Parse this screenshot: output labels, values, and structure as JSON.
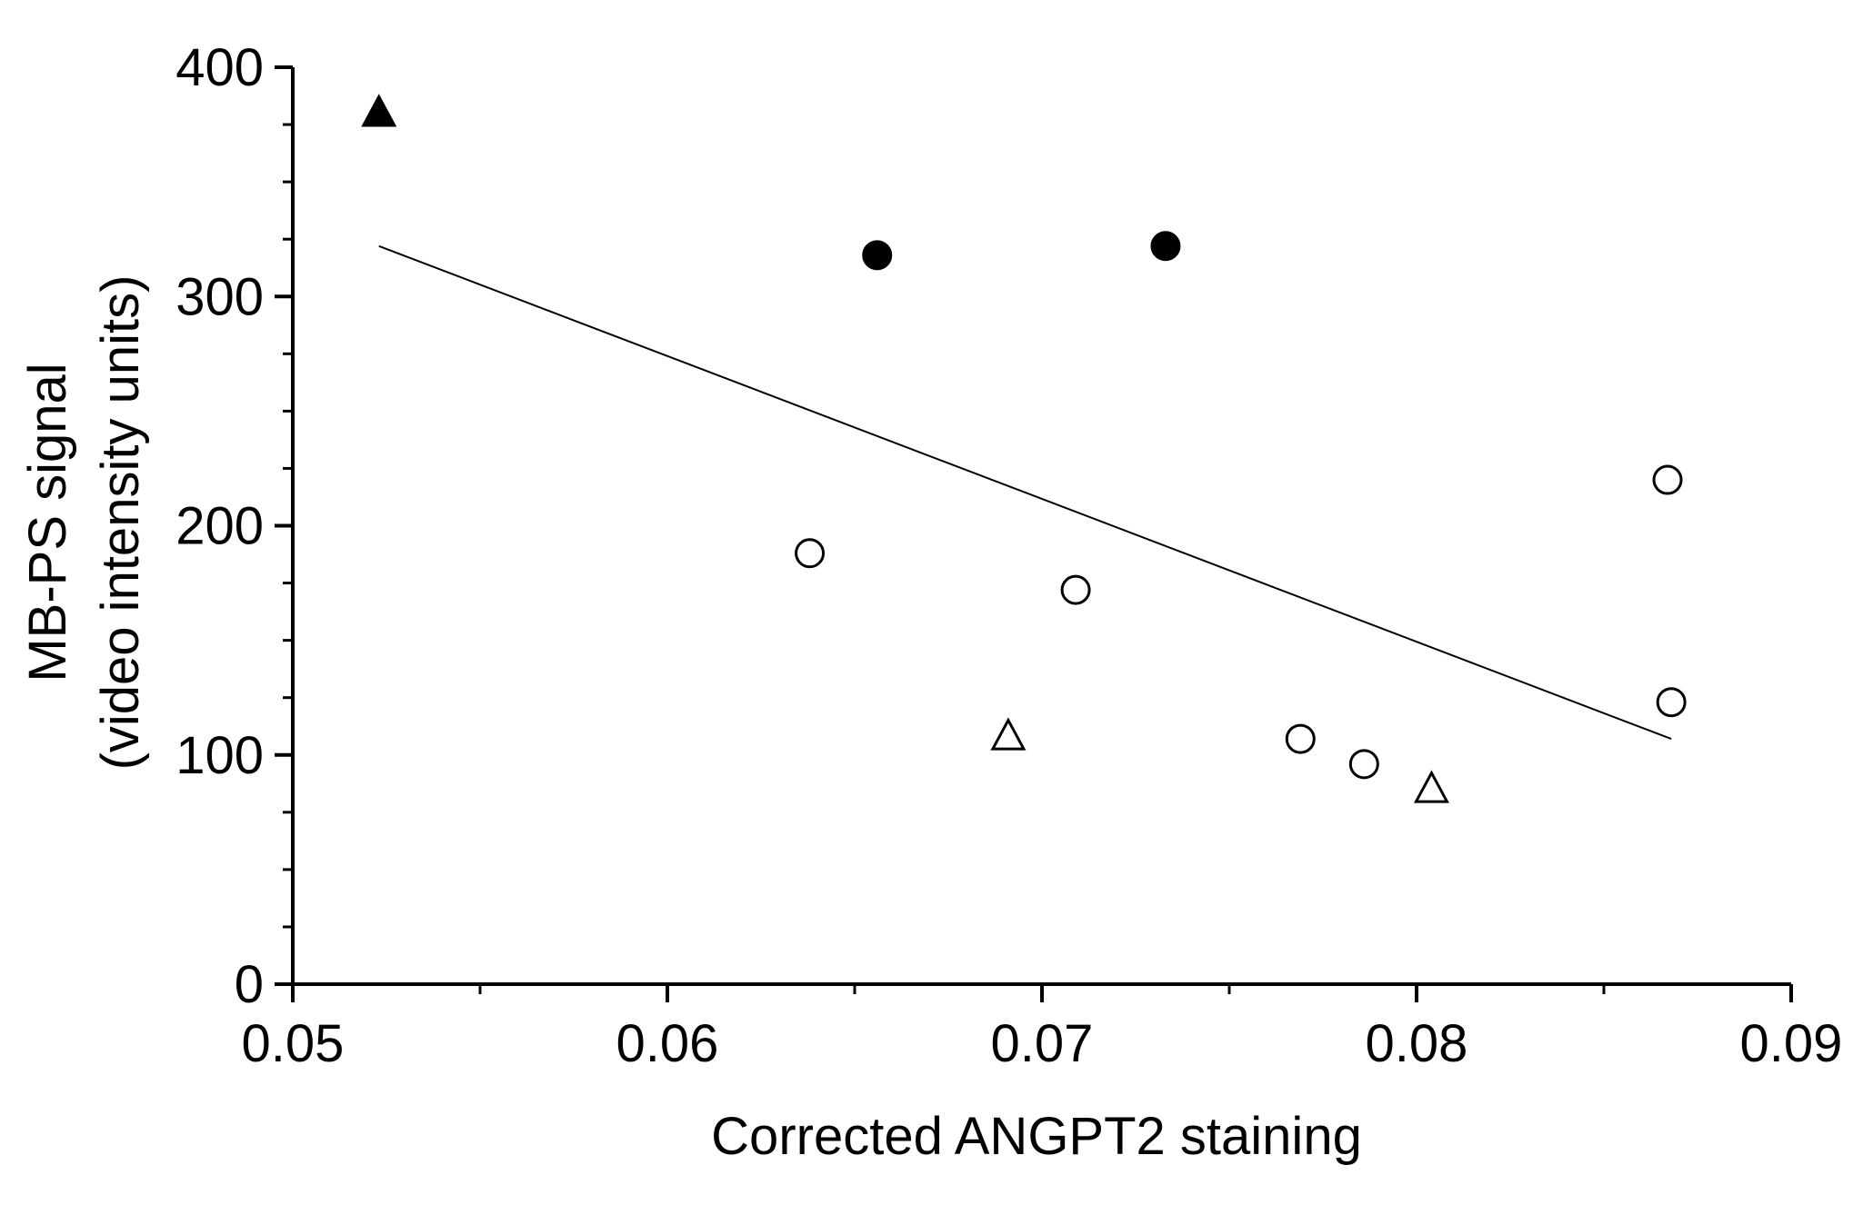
{
  "chart_data": {
    "type": "scatter",
    "xlabel": "Corrected ANGPT2 staining",
    "ylabel_line1": "MB-PS signal",
    "ylabel_line2": "(video intensity units)",
    "xlim": [
      0.05,
      0.09
    ],
    "ylim": [
      0,
      400
    ],
    "x_ticks": [
      0.05,
      0.06,
      0.07,
      0.08,
      0.09
    ],
    "x_tick_labels": [
      "0.05",
      "0.06",
      "0.07",
      "0.08",
      "0.09"
    ],
    "y_ticks": [
      0,
      100,
      200,
      300,
      400
    ],
    "y_tick_labels": [
      "0",
      "100",
      "200",
      "300",
      "400"
    ],
    "grid": false,
    "series": [
      {
        "marker": "triangle",
        "filled": true,
        "points": [
          [
            0.0523,
            380
          ]
        ]
      },
      {
        "marker": "circle",
        "filled": true,
        "points": [
          [
            0.0656,
            318
          ],
          [
            0.0733,
            322
          ]
        ]
      },
      {
        "marker": "circle",
        "filled": false,
        "points": [
          [
            0.0638,
            188
          ],
          [
            0.0709,
            172
          ],
          [
            0.0769,
            107
          ],
          [
            0.0786,
            96
          ],
          [
            0.0867,
            220
          ],
          [
            0.0868,
            123
          ]
        ]
      },
      {
        "marker": "triangle",
        "filled": false,
        "points": [
          [
            0.0691,
            108
          ],
          [
            0.0804,
            85
          ]
        ]
      }
    ],
    "trendline": {
      "x": [
        0.0523,
        0.0868
      ],
      "y": [
        322,
        107
      ]
    },
    "colors": {
      "marker": "#000000",
      "line": "#000000",
      "background": "#ffffff"
    }
  }
}
